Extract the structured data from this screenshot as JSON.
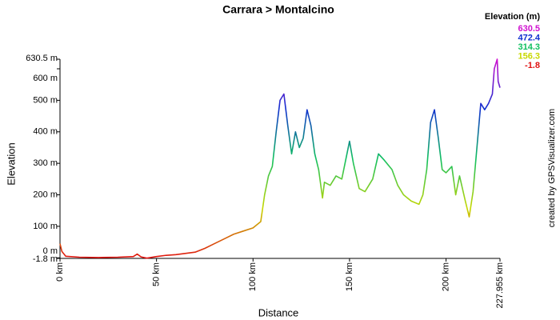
{
  "chart_data": {
    "type": "line",
    "title": "Carrara > Montalcino",
    "x_label": "Distance",
    "y_label": "Elevation",
    "credit": "created by GPSVisualizer.com",
    "legend_title": "Elevation (m)",
    "color_scale": [
      {
        "value": 630.5,
        "color": "#d010d0"
      },
      {
        "value": 472.4,
        "color": "#1030d0"
      },
      {
        "value": 314.3,
        "color": "#10c060"
      },
      {
        "value": 156.3,
        "color": "#c8d800"
      },
      {
        "value": -1.8,
        "color": "#e01010"
      }
    ],
    "xlim": [
      0,
      227.955
    ],
    "ylim": [
      -1.8,
      630.5
    ],
    "xticks": [
      {
        "value": 0,
        "label": "0 km"
      },
      {
        "value": 50,
        "label": "50 km"
      },
      {
        "value": 100,
        "label": "100 km"
      },
      {
        "value": 150,
        "label": "150 km"
      },
      {
        "value": 200,
        "label": "200 km"
      },
      {
        "value": 227.955,
        "label": "227.955 km"
      }
    ],
    "yticks": [
      {
        "value": -1.8,
        "label": "-1.8 m"
      },
      {
        "value": 0,
        "label": "0 m"
      },
      {
        "value": 100,
        "label": "100 m"
      },
      {
        "value": 200,
        "label": "200 m"
      },
      {
        "value": 300,
        "label": "300 m"
      },
      {
        "value": 400,
        "label": "400 m"
      },
      {
        "value": 500,
        "label": "500 m"
      },
      {
        "value": 600,
        "label": "600 m"
      },
      {
        "value": 630.5,
        "label": "630.5 m"
      }
    ],
    "x": [
      0,
      1,
      3,
      10,
      20,
      30,
      38,
      40,
      42,
      45,
      50,
      55,
      60,
      70,
      75,
      80,
      85,
      90,
      95,
      100,
      104,
      106,
      108,
      110,
      112,
      114,
      116,
      118,
      120,
      122,
      124,
      126,
      128,
      130,
      132,
      134,
      136,
      137,
      140,
      143,
      146,
      150,
      152,
      155,
      158,
      162,
      165,
      168,
      172,
      175,
      178,
      182,
      186,
      188,
      190,
      192,
      194,
      196,
      198,
      200,
      203,
      205,
      207,
      210,
      212,
      214,
      216,
      218,
      220,
      222,
      224,
      225,
      226.5,
      227,
      227.955
    ],
    "values": [
      45,
      20,
      5,
      2,
      1,
      2,
      4,
      12,
      3,
      -1,
      4,
      8,
      10,
      18,
      30,
      45,
      60,
      75,
      85,
      95,
      115,
      200,
      260,
      290,
      400,
      500,
      520,
      420,
      330,
      400,
      350,
      380,
      470,
      420,
      330,
      280,
      190,
      240,
      230,
      260,
      250,
      370,
      300,
      220,
      210,
      250,
      330,
      310,
      280,
      230,
      200,
      180,
      170,
      200,
      280,
      430,
      470,
      380,
      280,
      270,
      290,
      200,
      260,
      180,
      130,
      210,
      350,
      490,
      470,
      490,
      520,
      600,
      630.5,
      560,
      540
    ]
  }
}
